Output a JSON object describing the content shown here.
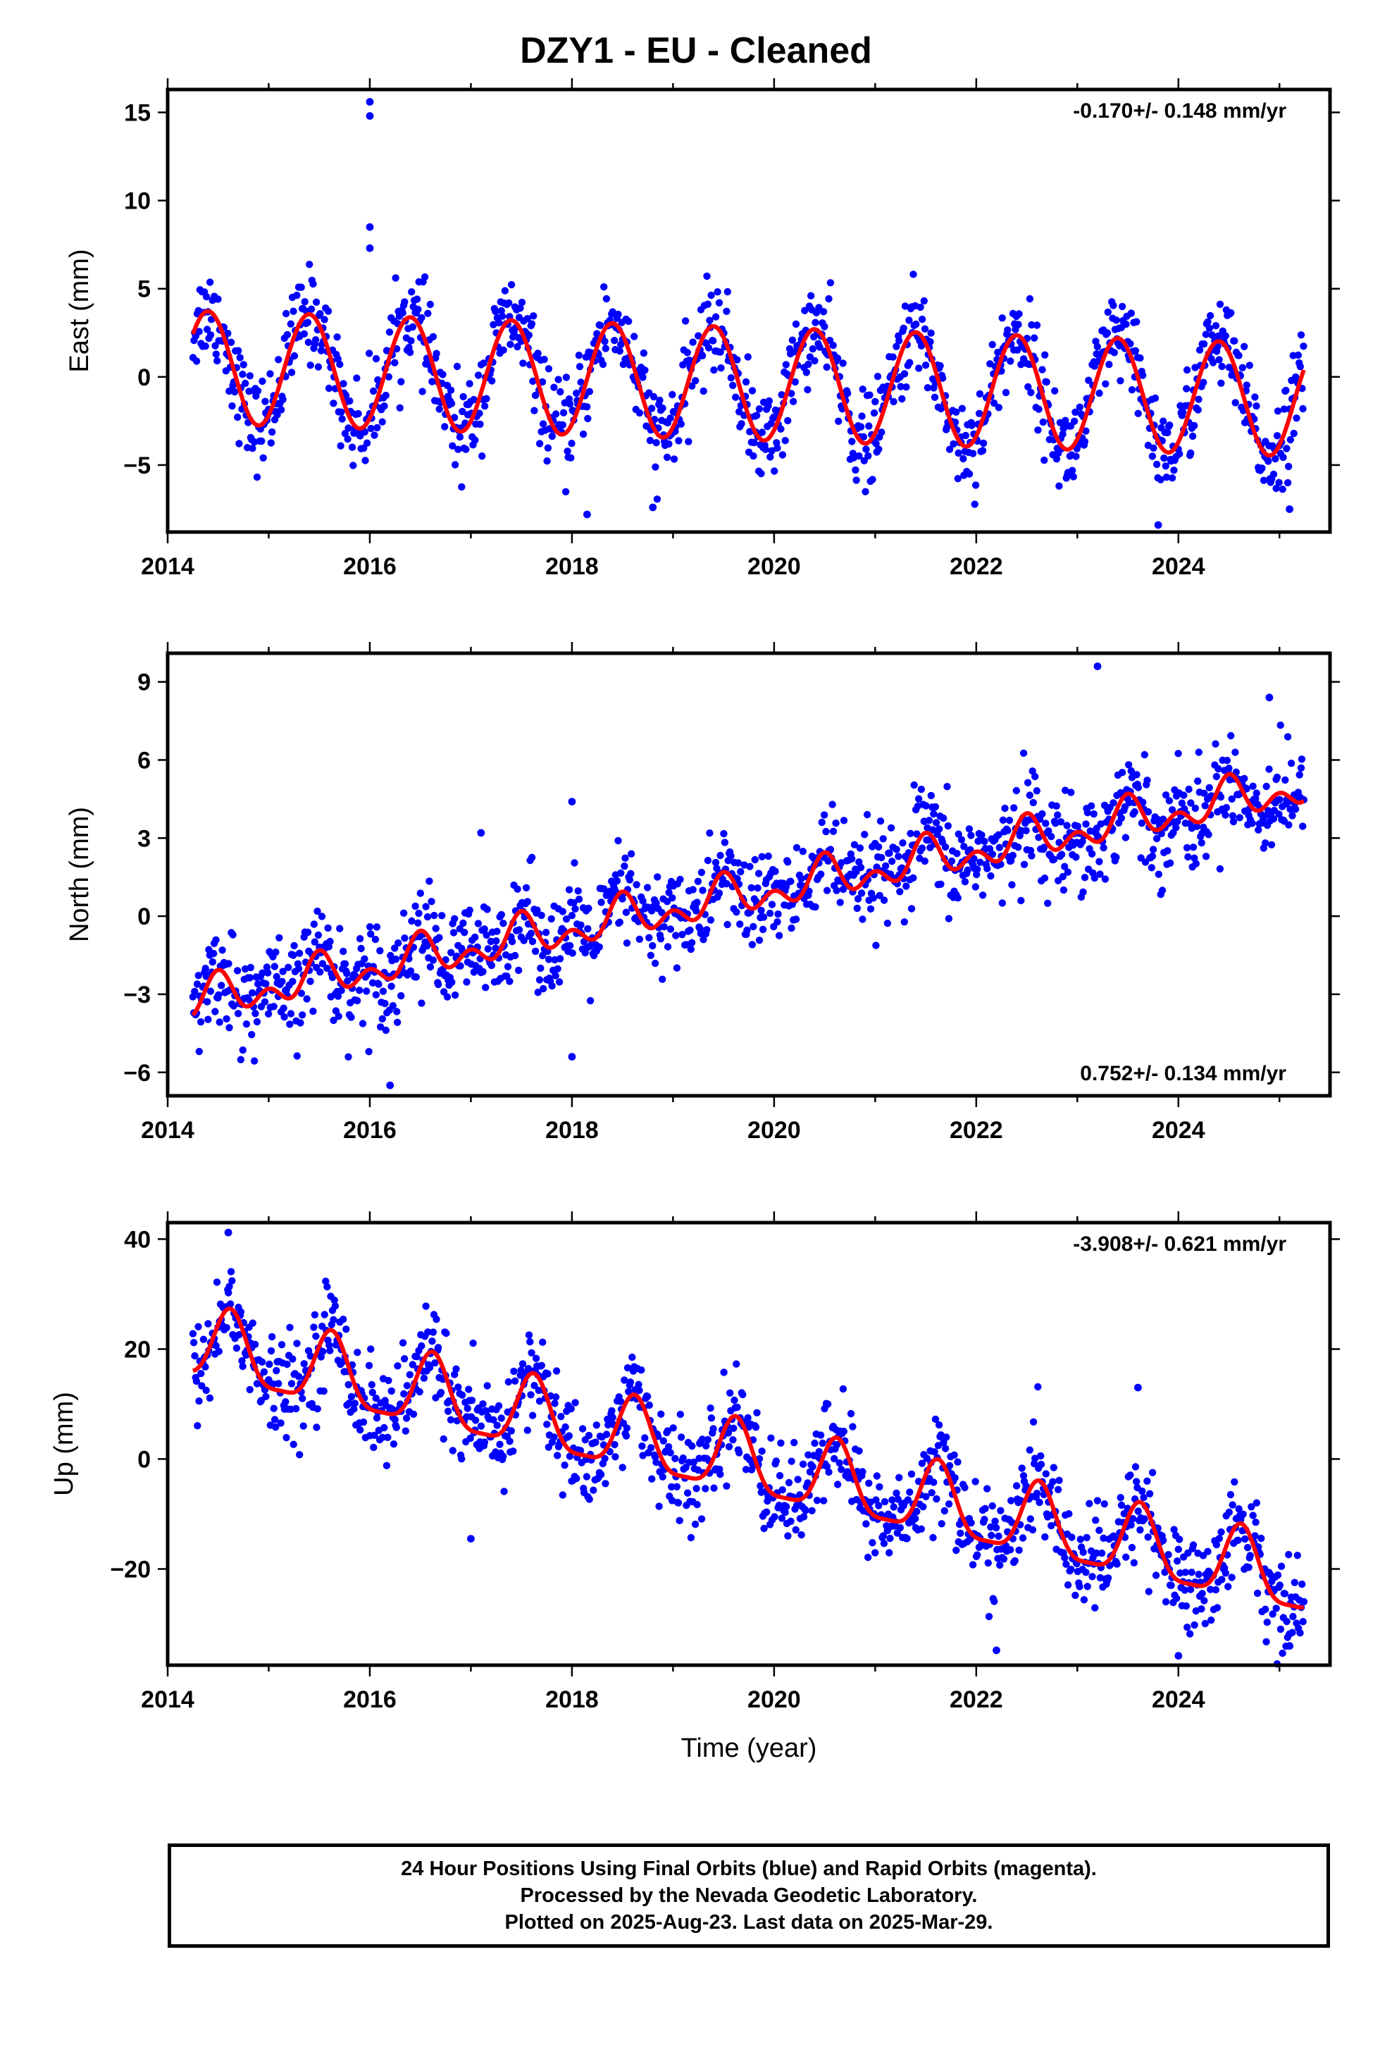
{
  "title": "DZY1  - EU - Cleaned",
  "colors": {
    "final_orbits": "#0000ff",
    "model_fit": "#ff0000",
    "frame": "#000000"
  },
  "caption": {
    "line1": "24 Hour Positions Using Final Orbits (blue) and Rapid Orbits (magenta).",
    "line2": "Processed by the Nevada Geodetic Laboratory.",
    "line3": "Plotted on 2025-Aug-23. Last data on 2025-Mar-29."
  },
  "chart_data": [
    {
      "type": "scatter",
      "component": "east",
      "ylabel": "East (mm)",
      "xlabel": "",
      "rate_label": "-0.170+/- 0.148 mm/yr",
      "rate_position": "top-right",
      "xlim": [
        2014,
        2025.5
      ],
      "ylim": [
        -8.8,
        16.3
      ],
      "x_ticks": [
        2014,
        2016,
        2018,
        2020,
        2022,
        2024
      ],
      "y_ticks": [
        -5,
        0,
        5,
        10,
        15
      ],
      "y_tick_labels": [
        "−5",
        "0",
        "5",
        "10",
        "15"
      ],
      "grid": false,
      "series": [],
      "fit_model": {
        "start": 2014.25,
        "end": 2025.24,
        "offset": 0.55,
        "rate": -0.17,
        "annual_amplitude": 3.2,
        "annual_peak": 2014.4,
        "semiannual_amplitude": 0,
        "semiannual_peak": 0
      },
      "scatter_model": {
        "noise_sd": 1.3,
        "count": 1250
      },
      "outliers": [
        [
          2016.0,
          15.6
        ],
        [
          2016.0,
          14.8
        ],
        [
          2016.0,
          8.5
        ],
        [
          2016.0,
          7.3
        ],
        [
          2023.8,
          -8.4
        ],
        [
          2025.1,
          -7.5
        ],
        [
          2018.15,
          -7.8
        ],
        [
          2018.8,
          -7.4
        ]
      ]
    },
    {
      "type": "scatter",
      "component": "north",
      "ylabel": "North (mm)",
      "xlabel": "",
      "rate_label": "0.752+/- 0.134 mm/yr",
      "rate_position": "bottom-right",
      "xlim": [
        2014,
        2025.5
      ],
      "ylim": [
        -6.9,
        10.1
      ],
      "x_ticks": [
        2014,
        2016,
        2018,
        2020,
        2022,
        2024
      ],
      "y_ticks": [
        -6,
        -3,
        0,
        3,
        6,
        9
      ],
      "y_tick_labels": [
        "−6",
        "−3",
        "0",
        "3",
        "6",
        "9"
      ],
      "grid": false,
      "series": [],
      "fit_model": {
        "start": 2014.25,
        "end": 2025.24,
        "offset": -3.3,
        "rate": 0.752,
        "annual_amplitude": 0.55,
        "annual_peak": 2014.5,
        "semiannual_amplitude": 0.5,
        "semiannual_peak": 2014.5
      },
      "scatter_model": {
        "noise_sd": 0.95,
        "count": 1250
      },
      "outliers": [
        [
          2023.2,
          9.6
        ],
        [
          2024.9,
          8.4
        ],
        [
          2016.2,
          -6.5
        ],
        [
          2018.0,
          -5.4
        ],
        [
          2017.1,
          3.2
        ],
        [
          2018.0,
          4.4
        ]
      ]
    },
    {
      "type": "scatter",
      "component": "up",
      "ylabel": "Up (mm)",
      "xlabel": "Time (year)",
      "rate_label": "-3.908+/- 0.621 mm/yr",
      "rate_position": "top-right",
      "xlim": [
        2014,
        2025.5
      ],
      "ylim": [
        -37.5,
        43
      ],
      "x_ticks": [
        2014,
        2016,
        2018,
        2020,
        2022,
        2024
      ],
      "y_ticks": [
        -20,
        0,
        20,
        40
      ],
      "y_tick_labels": [
        "−20",
        "0",
        "20",
        "40"
      ],
      "grid": false,
      "series": [],
      "fit_model": {
        "start": 2014.25,
        "end": 2025.24,
        "offset": 20.6,
        "rate": -3.908,
        "annual_amplitude": 6.5,
        "annual_peak": 2014.62,
        "semiannual_amplitude": 1.7,
        "semiannual_peak": 2014.62
      },
      "scatter_model": {
        "noise_sd": 4.5,
        "count": 1250
      },
      "outliers": [
        [
          2014.6,
          41.2
        ],
        [
          2022.2,
          -34.8
        ],
        [
          2024.0,
          -35.8
        ],
        [
          2025.1,
          -34.0
        ],
        [
          2017.0,
          -14.5
        ],
        [
          2023.6,
          13.0
        ]
      ]
    }
  ]
}
